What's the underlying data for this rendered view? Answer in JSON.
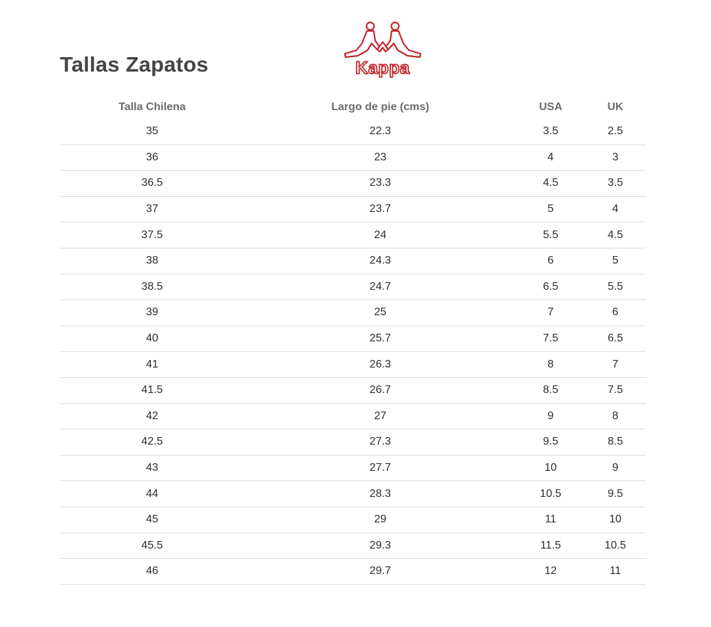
{
  "page": {
    "title": "Tallas Zapatos"
  },
  "brand": {
    "logo_text": "Kappa",
    "logo_icon": "kappa-omini-icon",
    "color": "#c0282d"
  },
  "table": {
    "headers": [
      "Talla Chilena",
      "Largo de pie (cms)",
      "USA",
      "UK"
    ],
    "rows": [
      [
        "35",
        "22.3",
        "3.5",
        "2.5"
      ],
      [
        "36",
        "23",
        "4",
        "3"
      ],
      [
        "36.5",
        "23.3",
        "4.5",
        "3.5"
      ],
      [
        "37",
        "23.7",
        "5",
        "4"
      ],
      [
        "37.5",
        "24",
        "5.5",
        "4.5"
      ],
      [
        "38",
        "24.3",
        "6",
        "5"
      ],
      [
        "38.5",
        "24.7",
        "6.5",
        "5.5"
      ],
      [
        "39",
        "25",
        "7",
        "6"
      ],
      [
        "40",
        "25.7",
        "7.5",
        "6.5"
      ],
      [
        "41",
        "26.3",
        "8",
        "7"
      ],
      [
        "41.5",
        "26.7",
        "8.5",
        "7.5"
      ],
      [
        "42",
        "27",
        "9",
        "8"
      ],
      [
        "42.5",
        "27.3",
        "9.5",
        "8.5"
      ],
      [
        "43",
        "27.7",
        "10",
        "9"
      ],
      [
        "44",
        "28.3",
        "10.5",
        "9.5"
      ],
      [
        "45",
        "29",
        "11",
        "10"
      ],
      [
        "45.5",
        "29.3",
        "11.5",
        "10.5"
      ],
      [
        "46",
        "29.7",
        "12",
        "11"
      ]
    ]
  }
}
